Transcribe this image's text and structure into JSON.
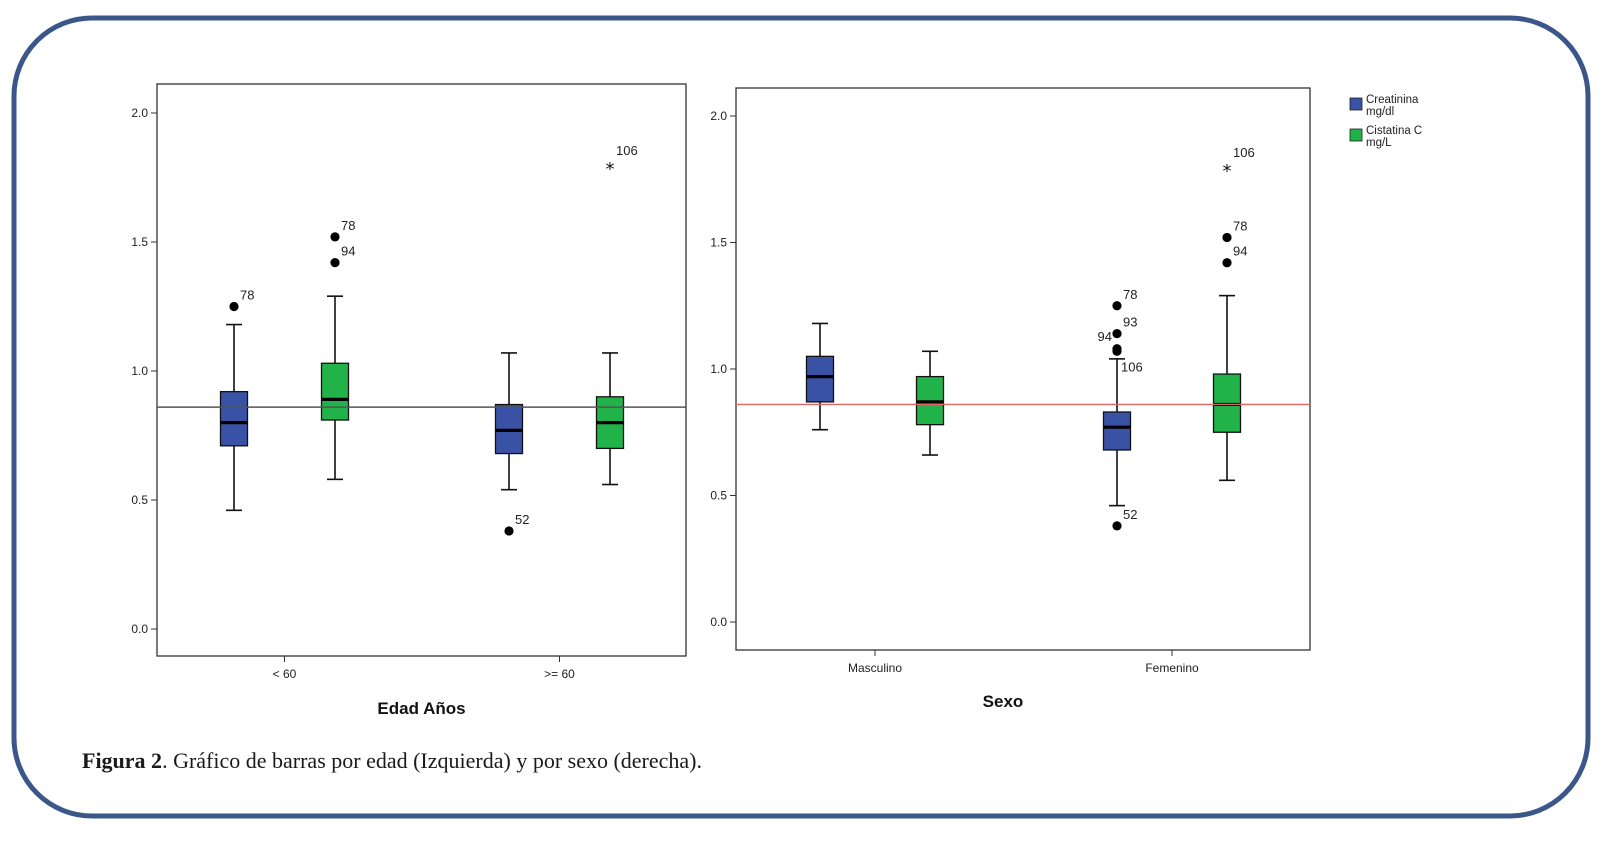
{
  "colors": {
    "frame": "#3b5789",
    "creatinina": "#3a52a6",
    "cistatina": "#22b24a",
    "ref_line_left": "#555555",
    "ref_line_right": "#e06666"
  },
  "caption": {
    "label": "Figura 2",
    "text": ". Gráfico de barras por edad (Izquierda) y por sexo (derecha)."
  },
  "legend": {
    "entries": [
      {
        "line1": "Creatinina",
        "line2": "mg/dl",
        "color": "#3a52a6"
      },
      {
        "line1": "Cistatina C",
        "line2": "mg/L",
        "color": "#22b24a"
      }
    ]
  },
  "chart_data": [
    {
      "type": "box",
      "xlabel": "Edad Años",
      "ylabel": "",
      "ylim": [
        0,
        2.0
      ],
      "yticks": [
        "0.0",
        "0.5",
        "1.0",
        "1.5",
        "2.0"
      ],
      "categories": [
        "< 60",
        ">= 60"
      ],
      "reference_line": 0.86,
      "series": [
        {
          "name": "Creatinina mg/dl",
          "boxes": [
            {
              "min": 0.46,
              "q1": 0.71,
              "median": 0.8,
              "q3": 0.92,
              "max": 1.18,
              "outliers": [
                {
                  "value": 1.25,
                  "label": "78",
                  "marker": "circle"
                }
              ]
            },
            {
              "min": 0.54,
              "q1": 0.68,
              "median": 0.77,
              "q3": 0.87,
              "max": 1.07,
              "outliers": [
                {
                  "value": 0.38,
                  "label": "52",
                  "marker": "circle"
                }
              ]
            }
          ]
        },
        {
          "name": "Cistatina C mg/L",
          "boxes": [
            {
              "min": 0.58,
              "q1": 0.81,
              "median": 0.89,
              "q3": 1.03,
              "max": 1.29,
              "outliers": [
                {
                  "value": 1.52,
                  "label": "78",
                  "marker": "circle"
                },
                {
                  "value": 1.42,
                  "label": "94",
                  "marker": "circle"
                }
              ]
            },
            {
              "min": 0.56,
              "q1": 0.7,
              "median": 0.8,
              "q3": 0.9,
              "max": 1.07,
              "outliers": [
                {
                  "value": 1.79,
                  "label": "106",
                  "marker": "star"
                }
              ]
            }
          ]
        }
      ]
    },
    {
      "type": "box",
      "xlabel": "Sexo",
      "ylabel": "",
      "ylim": [
        0,
        2.0
      ],
      "yticks": [
        "0.0",
        "0.5",
        "1.0",
        "1.5",
        "2.0"
      ],
      "categories": [
        "Masculino",
        "Femenino"
      ],
      "reference_line": 0.86,
      "series": [
        {
          "name": "Creatinina mg/dl",
          "boxes": [
            {
              "min": 0.76,
              "q1": 0.87,
              "median": 0.97,
              "q3": 1.05,
              "max": 1.18,
              "outliers": []
            },
            {
              "min": 0.46,
              "q1": 0.68,
              "median": 0.77,
              "q3": 0.83,
              "max": 1.04,
              "outliers": [
                {
                  "value": 1.25,
                  "label": "78",
                  "marker": "circle"
                },
                {
                  "value": 1.14,
                  "label": "93",
                  "marker": "circle"
                },
                {
                  "value": 1.08,
                  "label": "94",
                  "marker": "circle"
                },
                {
                  "value": 1.07,
                  "label": "106",
                  "marker": "circle"
                },
                {
                  "value": 0.38,
                  "label": "52",
                  "marker": "circle"
                }
              ]
            }
          ]
        },
        {
          "name": "Cistatina C mg/L",
          "boxes": [
            {
              "min": 0.66,
              "q1": 0.78,
              "median": 0.87,
              "q3": 0.97,
              "max": 1.07,
              "outliers": []
            },
            {
              "min": 0.56,
              "q1": 0.75,
              "median": 0.86,
              "q3": 0.98,
              "max": 1.29,
              "outliers": [
                {
                  "value": 1.52,
                  "label": "78",
                  "marker": "circle"
                },
                {
                  "value": 1.42,
                  "label": "94",
                  "marker": "circle"
                },
                {
                  "value": 1.79,
                  "label": "106",
                  "marker": "star"
                }
              ]
            }
          ]
        }
      ]
    }
  ]
}
